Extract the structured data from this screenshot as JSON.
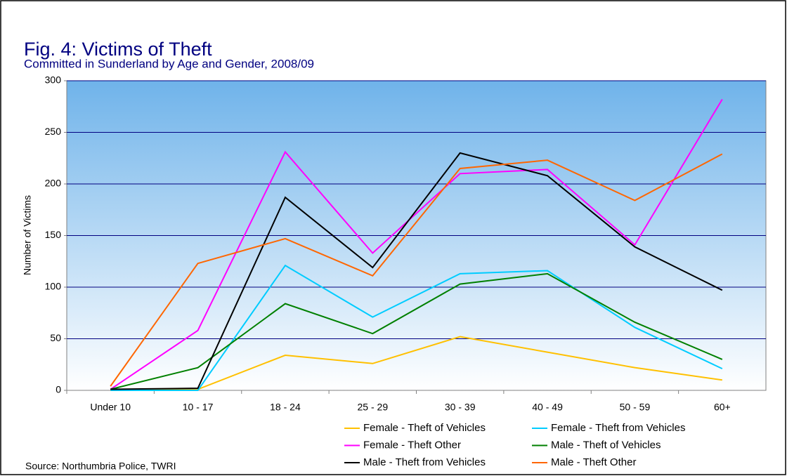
{
  "chart_data": {
    "type": "line",
    "title": "Fig. 4: Victims of Theft",
    "subtitle": "Committed in Sunderland by Age and Gender, 2008/09",
    "y_label": "Number of Victims",
    "source": "Source: Northumbria Police, TWRI",
    "categories": [
      "Under 10",
      "10 - 17",
      "18 - 24",
      "25 - 29",
      "30 - 39",
      "40 - 49",
      "50 - 59",
      "60+"
    ],
    "series": [
      {
        "name": "Female - Theft of Vehicles",
        "color": "#ffc000",
        "values": [
          0,
          1,
          34,
          26,
          52,
          37,
          22,
          10
        ]
      },
      {
        "name": "Female - Theft from Vehicles",
        "color": "#00ccff",
        "values": [
          0,
          0,
          121,
          71,
          113,
          116,
          61,
          21
        ]
      },
      {
        "name": "Female - Theft Other",
        "color": "#ff00ff",
        "values": [
          1,
          58,
          231,
          133,
          210,
          214,
          141,
          282
        ]
      },
      {
        "name": "Male - Theft of Vehicles",
        "color": "#008000",
        "values": [
          1,
          22,
          84,
          55,
          103,
          113,
          66,
          30
        ]
      },
      {
        "name": "Male - Theft from Vehicles",
        "color": "#000000",
        "values": [
          1,
          2,
          187,
          119,
          230,
          208,
          139,
          97
        ]
      },
      {
        "name": "Male - Theft Other",
        "color": "#ff6600",
        "values": [
          4,
          123,
          147,
          111,
          215,
          223,
          184,
          229
        ]
      }
    ],
    "ylim": [
      0,
      300
    ],
    "yticks": [
      0,
      50,
      100,
      150,
      200,
      250,
      300
    ],
    "grid": true
  }
}
